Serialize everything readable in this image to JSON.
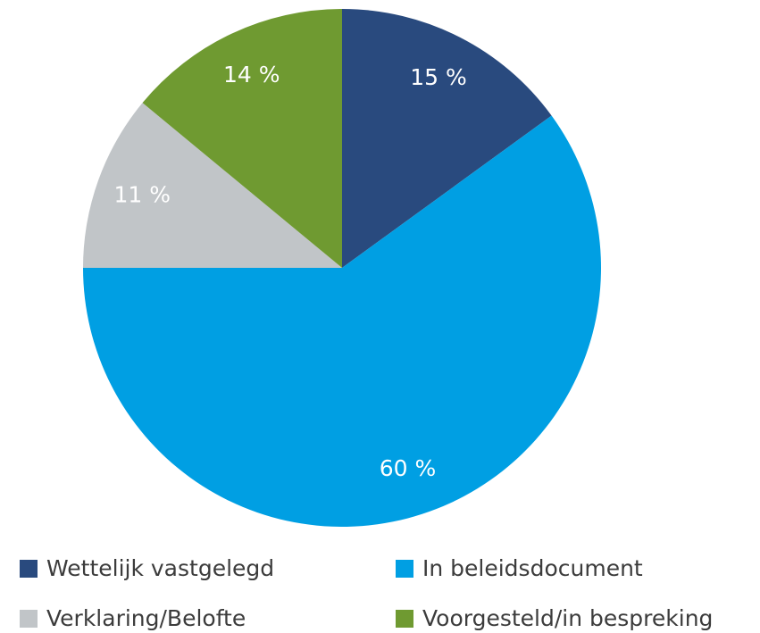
{
  "chart_data": {
    "type": "pie",
    "categories": [
      "Wettelijk vastgelegd",
      "In beleidsdocument",
      "Verklaring/Belofte",
      "Voorgesteld/in bespreking"
    ],
    "values": [
      15,
      60,
      11,
      14
    ],
    "value_labels": [
      "15 %",
      "60 %",
      "11 %",
      "14 %"
    ],
    "colors": [
      "#294a7e",
      "#009fe3",
      "#c1c5c8",
      "#6f9a31"
    ],
    "legend": "bottom"
  }
}
